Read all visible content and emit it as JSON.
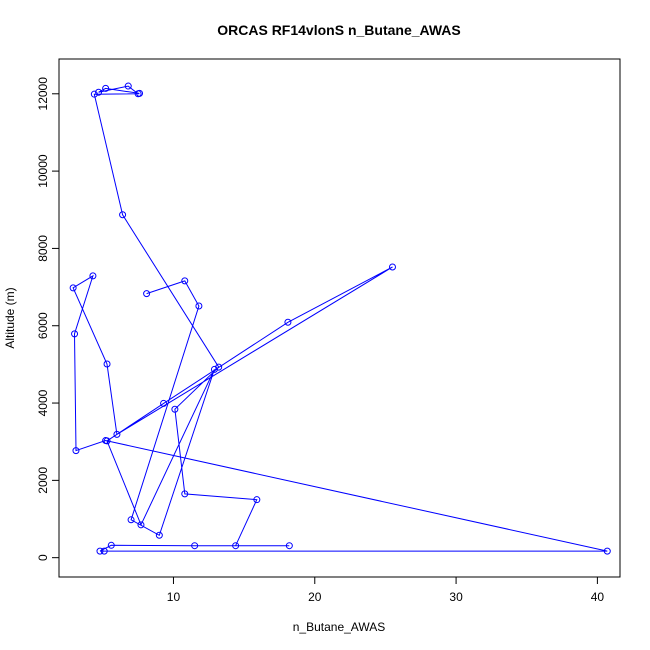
{
  "chart_data": {
    "type": "line",
    "title": "ORCAS RF14vlonS n_Butane_AWAS",
    "xlabel": "n_Butane_AWAS",
    "ylabel": "Altitude (m)",
    "xlim": [
      1.9,
      41.6
    ],
    "ylim": [
      -500,
      12900
    ],
    "xticks": [
      10,
      20,
      30,
      40
    ],
    "yticks": [
      0,
      2000,
      4000,
      6000,
      8000,
      10000,
      12000
    ],
    "color": "#0000ff",
    "series": [
      {
        "x": [
          7.6,
          5.2,
          4.7,
          6.8,
          7.5,
          4.4,
          6.4,
          13.2,
          10.1,
          10.8,
          15.9,
          14.4,
          18.2,
          11.5,
          5.6,
          4.8,
          5.1,
          40.7,
          5.2,
          3.1,
          3.0,
          4.3,
          2.9,
          5.3,
          6.0,
          25.5,
          18.1,
          9.3,
          5.3,
          7.7,
          12.9,
          9.0,
          7.0,
          11.8,
          10.8,
          8.1
        ],
        "y": [
          12010,
          12140,
          12040,
          12200,
          12000,
          11990,
          8870,
          4930,
          3840,
          1650,
          1500,
          310,
          310,
          310,
          320,
          170,
          170,
          170,
          3030,
          2770,
          5790,
          7290,
          6980,
          5010,
          3190,
          7520,
          6090,
          3990,
          3020,
          850,
          4870,
          580,
          980,
          6510,
          7160,
          6830
        ]
      }
    ]
  }
}
